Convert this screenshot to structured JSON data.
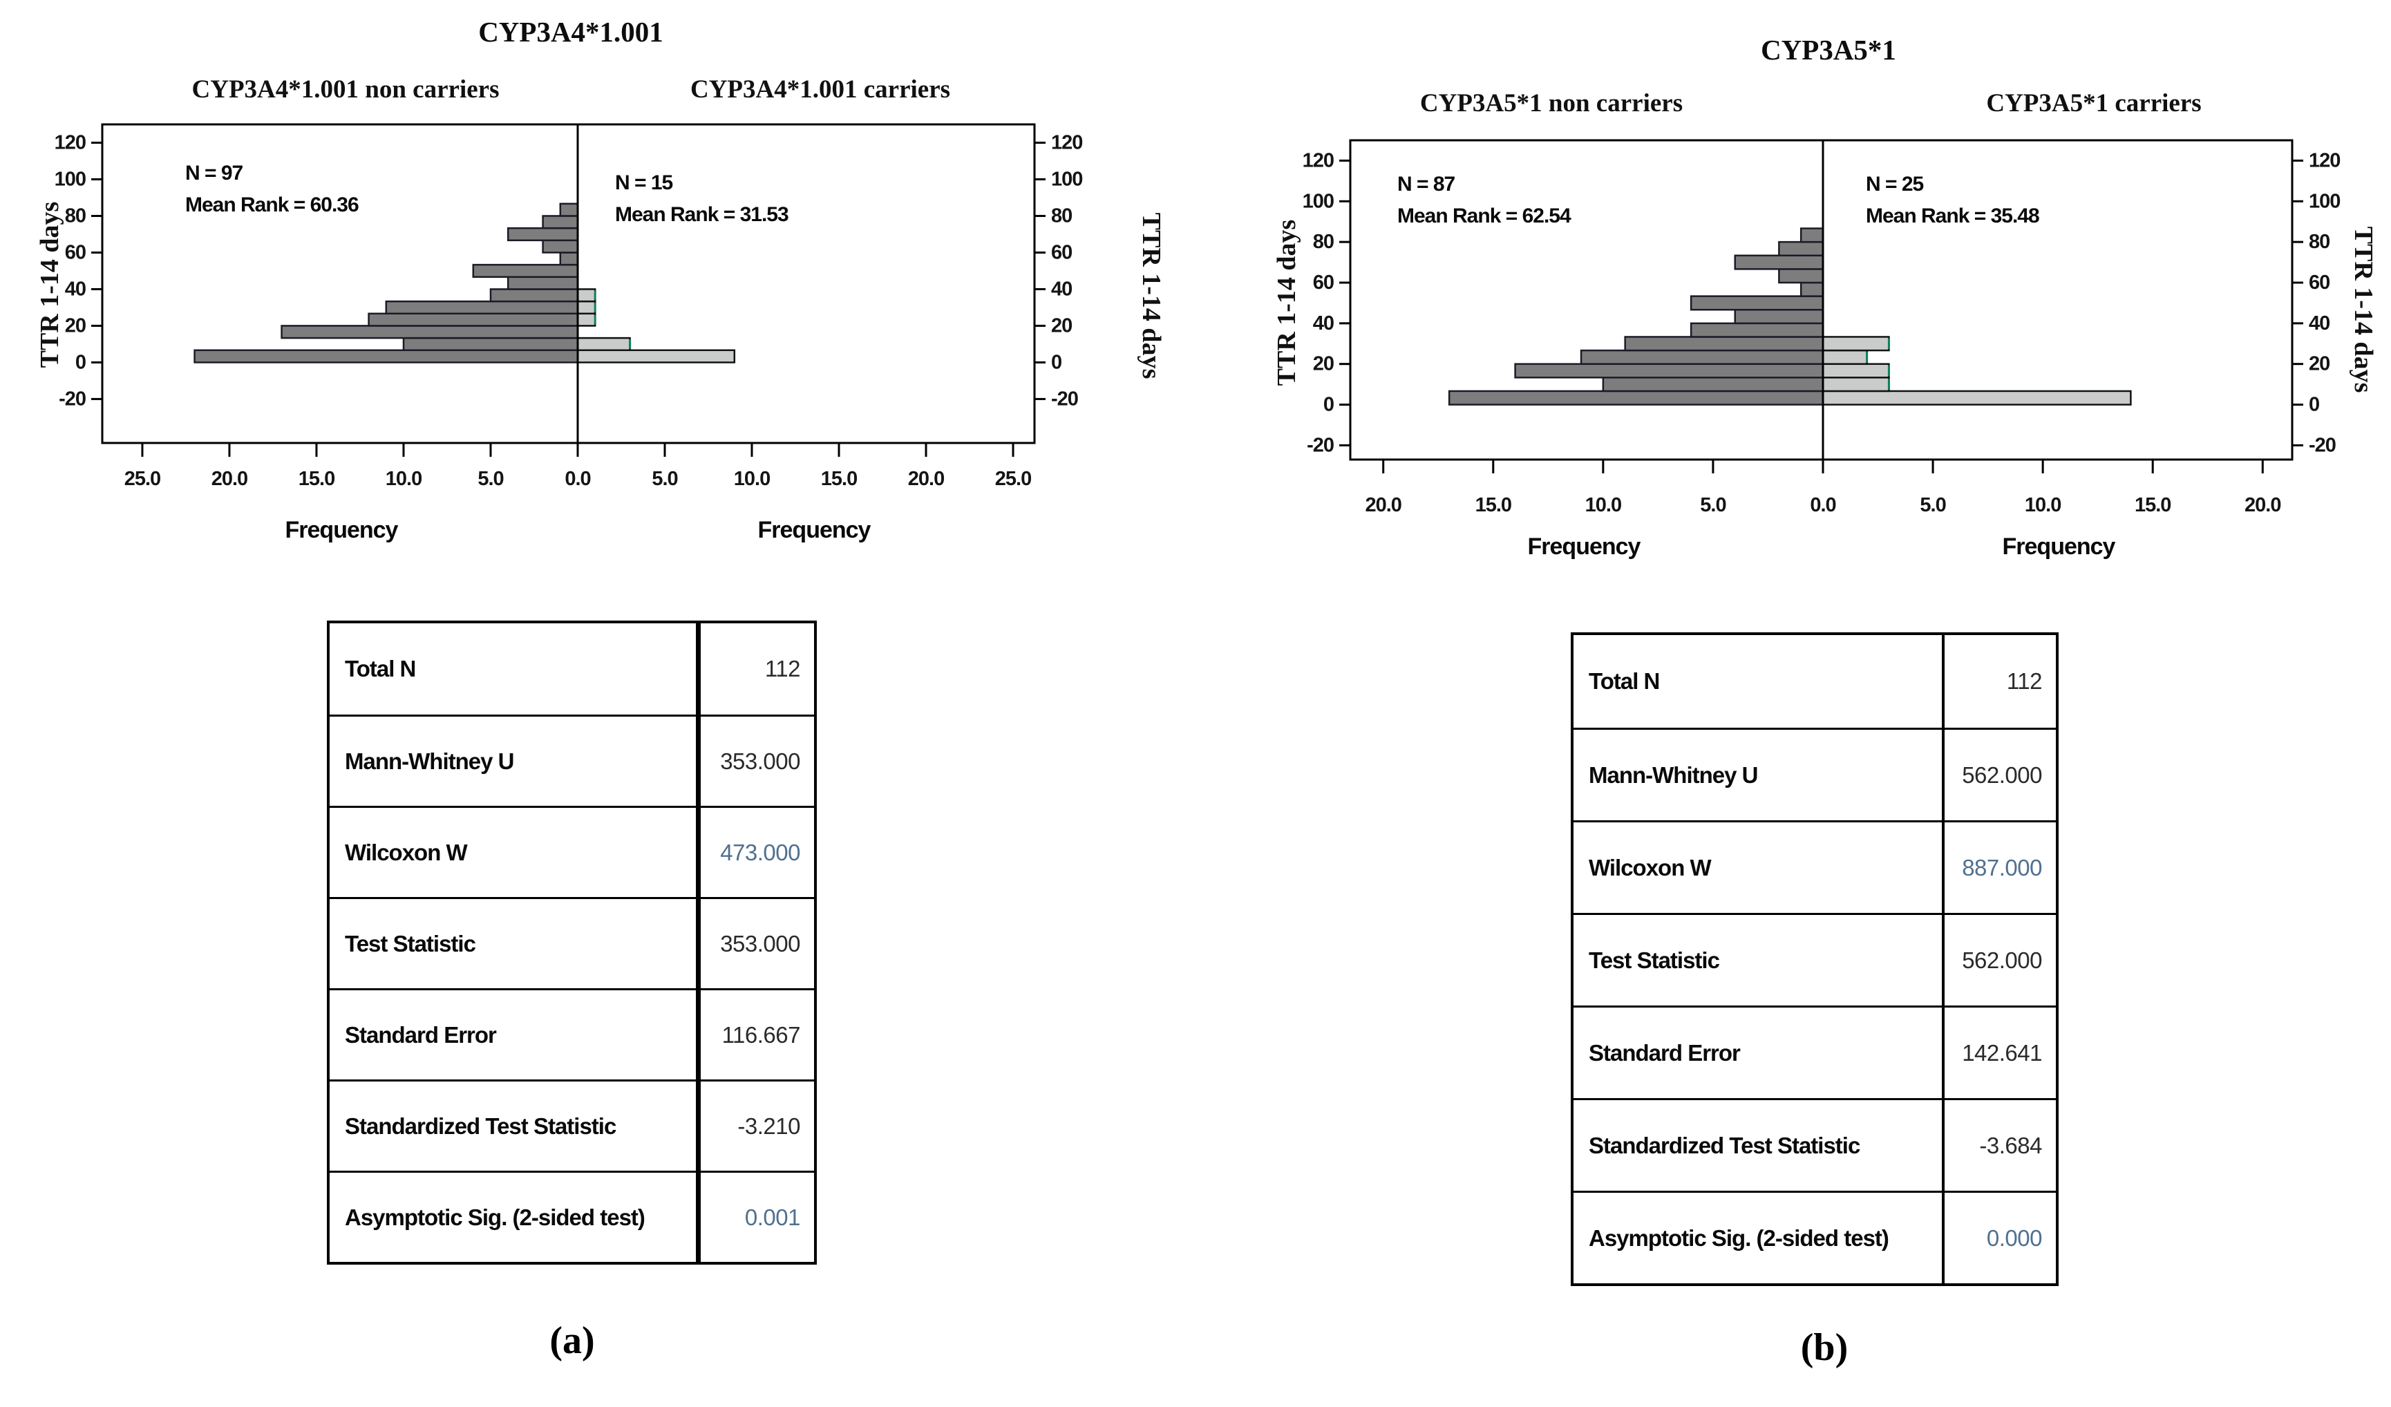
{
  "page": {
    "background": "#ffffff"
  },
  "colors": {
    "bar_dark": "#7d7d7d",
    "bar_light": "#c9ccca",
    "bar_dark_stroke": "#1b1b28",
    "bar_light_stroke": "#121212",
    "teal_edge": "#0e8060",
    "axis": "#000000",
    "value_highlight": "#50708f"
  },
  "chart_data": [
    {
      "id": "a",
      "type": "bar",
      "subtype": "back-to-back-histogram-pyramid",
      "title": "CYP3A4*1.001",
      "xlabel": "Frequency",
      "ylabel": "TTR 1-14 days",
      "grid": false,
      "legend": "none",
      "bin_width_days": 6.667,
      "y_ticks": [
        120,
        100,
        80,
        60,
        40,
        20,
        0,
        -20
      ],
      "x_ticks_left": [
        25,
        20,
        15,
        10,
        5
      ],
      "x_ticks_right": [
        5,
        10,
        15,
        20,
        25
      ],
      "center_tick_label": "0.0",
      "x_max_left": 27.3,
      "x_max_right": 26.2,
      "y_range": [
        -44,
        130
      ],
      "panels": [
        {
          "side": "left",
          "title": "CYP3A4*1.001 non carriers",
          "n_label": "N = 97",
          "mean_rank_label": "Mean Rank = 60.36",
          "counts": [
            22,
            10,
            17,
            12,
            11,
            5,
            4,
            6,
            1,
            2,
            4,
            2,
            1
          ]
        },
        {
          "side": "right",
          "title": "CYP3A4*1.001 carriers",
          "n_label": "N = 15",
          "mean_rank_label": "Mean Rank = 31.53",
          "counts": [
            9,
            3,
            0,
            1,
            1,
            1
          ]
        }
      ]
    },
    {
      "id": "b",
      "type": "bar",
      "subtype": "back-to-back-histogram-pyramid",
      "title": "CYP3A5*1",
      "xlabel": "Frequency",
      "ylabel": "TTR 1-14 days",
      "grid": false,
      "legend": "none",
      "bin_width_days": 6.667,
      "y_ticks": [
        120,
        100,
        80,
        60,
        40,
        20,
        0,
        -20
      ],
      "x_ticks_left": [
        20,
        15,
        10,
        5
      ],
      "x_ticks_right": [
        5,
        10,
        15,
        20
      ],
      "center_tick_label": "0.0",
      "x_max_left": 21.5,
      "x_max_right": 21.4,
      "y_range": [
        -27,
        130
      ],
      "panels": [
        {
          "side": "left",
          "title": "CYP3A5*1 non carriers",
          "n_label": "N = 87",
          "mean_rank_label": "Mean Rank = 62.54",
          "counts": [
            17,
            10,
            14,
            11,
            9,
            6,
            4,
            6,
            1,
            2,
            4,
            2,
            1
          ]
        },
        {
          "side": "right",
          "title": "CYP3A5*1 carriers",
          "n_label": "N = 25",
          "mean_rank_label": "Mean Rank = 35.48",
          "counts": [
            14,
            3,
            3,
            2,
            3
          ]
        }
      ]
    }
  ],
  "tables": [
    {
      "rows": [
        [
          "Total N",
          "112"
        ],
        [
          "Mann-Whitney U",
          "353.000"
        ],
        [
          "Wilcoxon W",
          "473.000"
        ],
        [
          "Test Statistic",
          "353.000"
        ],
        [
          "Standard Error",
          "116.667"
        ],
        [
          "Standardized Test Statistic",
          "-3.210"
        ],
        [
          "Asymptotic Sig. (2-sided test)",
          "0.001"
        ]
      ]
    },
    {
      "rows": [
        [
          "Total N",
          "112"
        ],
        [
          "Mann-Whitney U",
          "562.000"
        ],
        [
          "Wilcoxon W",
          "887.000"
        ],
        [
          "Test Statistic",
          "562.000"
        ],
        [
          "Standard Error",
          "142.641"
        ],
        [
          "Standardized Test Statistic",
          "-3.684"
        ],
        [
          "Asymptotic Sig. (2-sided test)",
          "0.000"
        ]
      ]
    }
  ],
  "captions": [
    "(a)",
    "(b)"
  ]
}
